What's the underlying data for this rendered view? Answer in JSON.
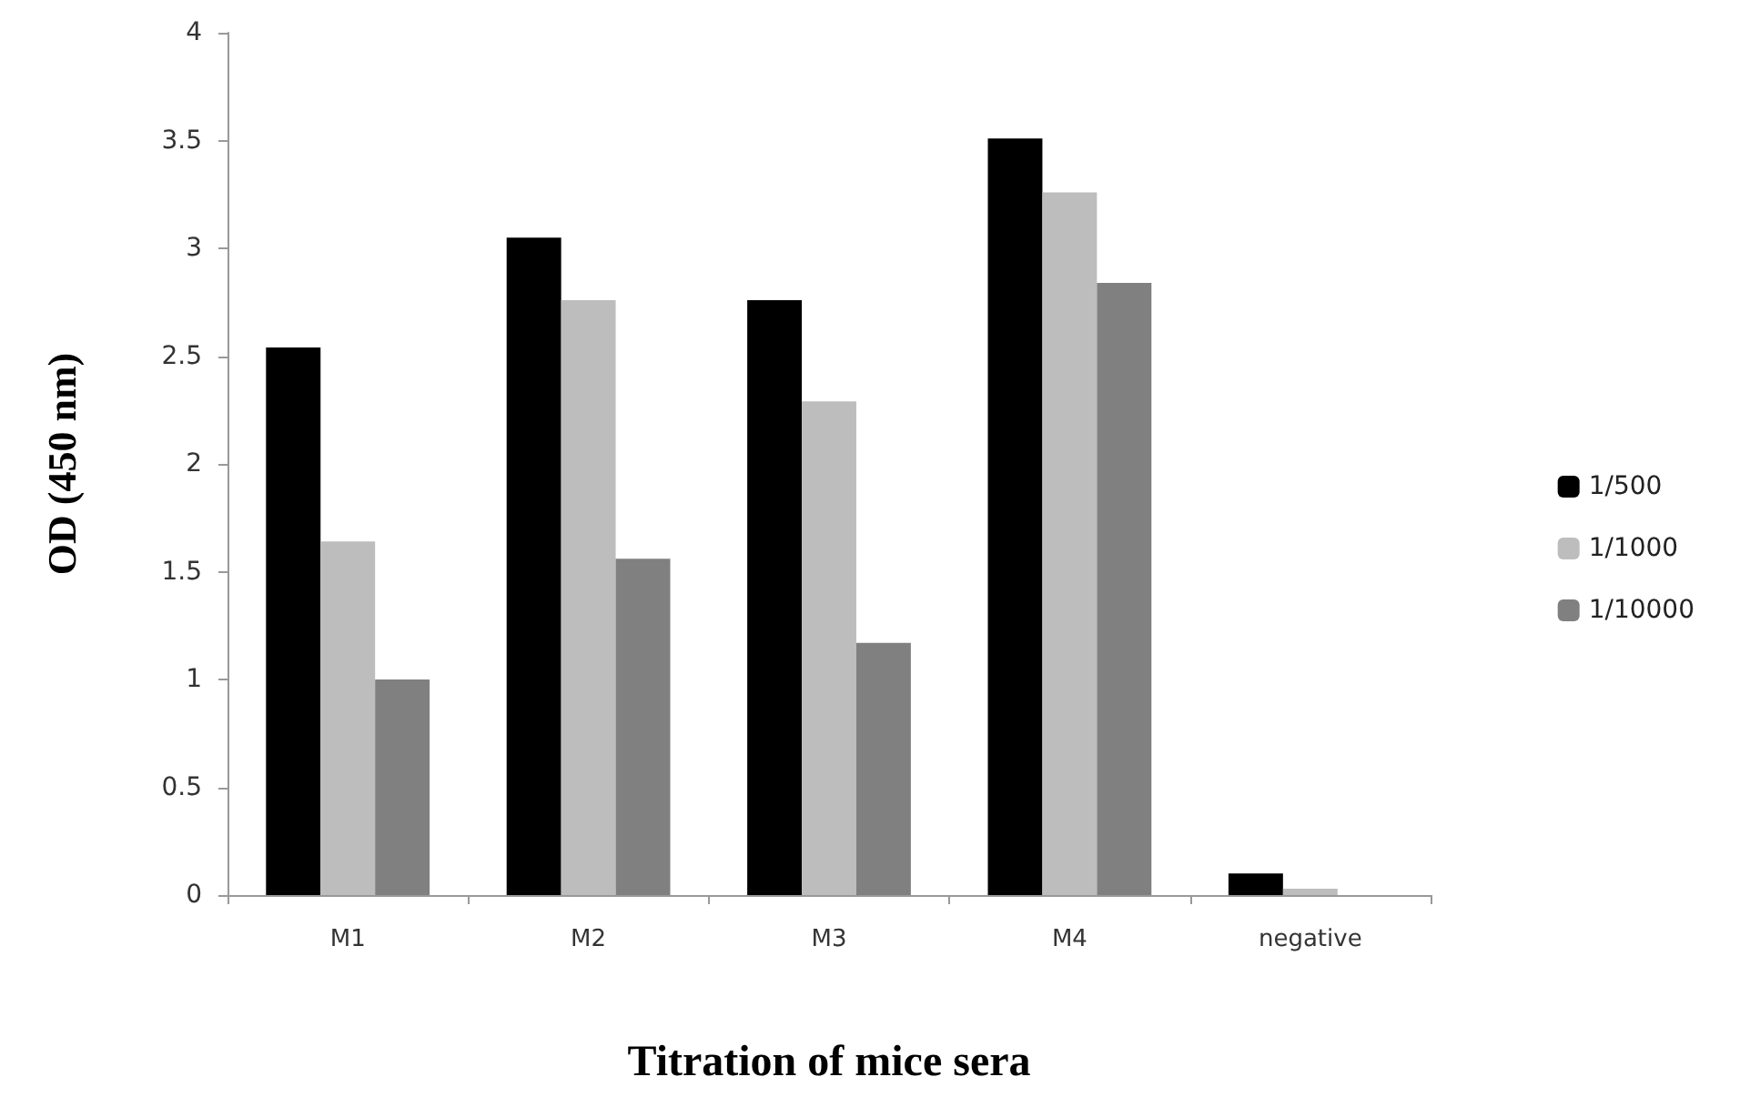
{
  "chart_data": {
    "type": "bar",
    "xlabel": "Titration of mice sera",
    "ylabel": "OD (450 nm)",
    "categories": [
      "M1",
      "M2",
      "M3",
      "M4",
      "negative"
    ],
    "series": [
      {
        "name": "1/500",
        "color": "#000000",
        "values": [
          2.54,
          3.05,
          2.76,
          3.51,
          0.1
        ]
      },
      {
        "name": "1/1000",
        "color": "#bdbdbd",
        "values": [
          1.64,
          2.76,
          2.29,
          3.26,
          0.03
        ]
      },
      {
        "name": "1/10000",
        "color": "#808080",
        "values": [
          1.0,
          1.56,
          1.17,
          2.84,
          0
        ]
      }
    ],
    "ylim": [
      0,
      4
    ],
    "yticks": [
      0,
      0.5,
      1,
      1.5,
      2,
      2.5,
      3,
      3.5,
      4
    ],
    "grid": false,
    "legend": "right"
  }
}
